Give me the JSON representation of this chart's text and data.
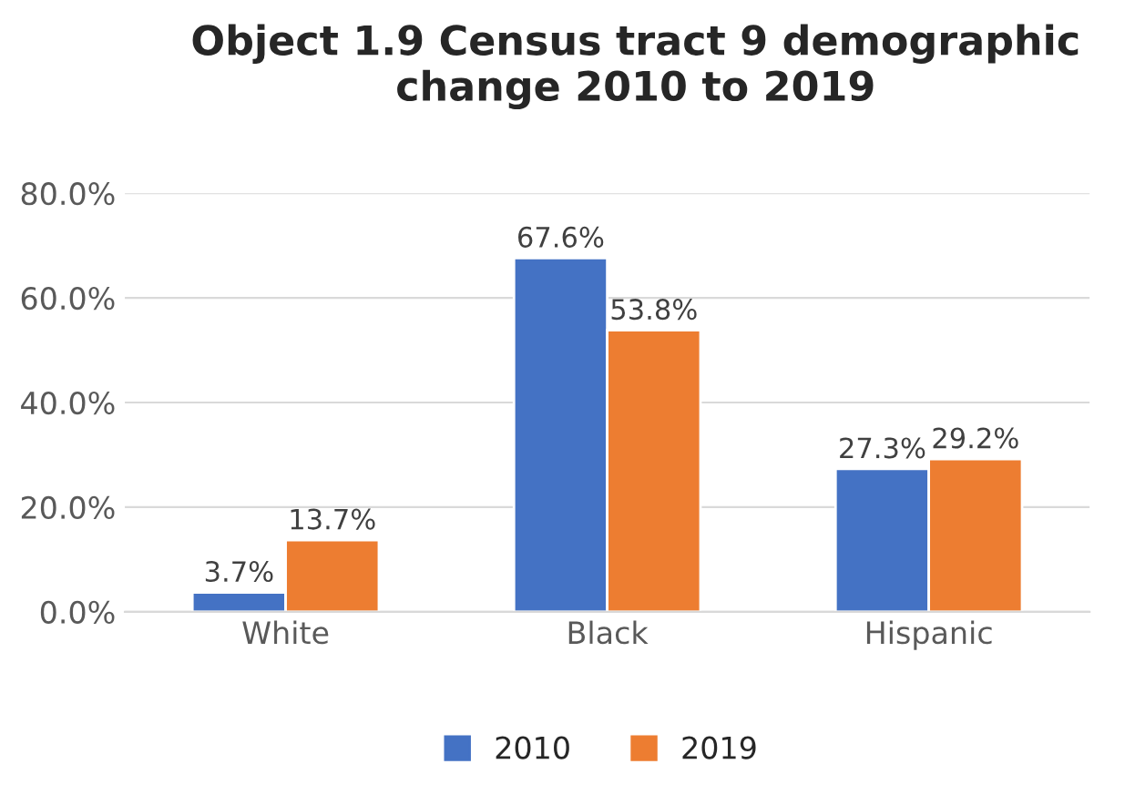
{
  "chart_data": {
    "type": "bar",
    "title": "Object 1.9 Census tract 9 demographic change 2010 to 2019",
    "categories": [
      "White",
      "Black",
      "Hispanic"
    ],
    "series": [
      {
        "name": "2010",
        "color": "#4472c4",
        "values": [
          3.7,
          67.6,
          27.3
        ],
        "value_labels": [
          "3.7%",
          "67.6%",
          "27.3%"
        ]
      },
      {
        "name": "2019",
        "color": "#ed7d31",
        "values": [
          13.7,
          53.8,
          29.2
        ],
        "value_labels": [
          "13.7%",
          "53.8%",
          "29.2%"
        ]
      }
    ],
    "ylim": [
      0,
      80
    ],
    "yticks": [
      {
        "value": 0,
        "label": "0.0%"
      },
      {
        "value": 20,
        "label": "20.0%"
      },
      {
        "value": 40,
        "label": "40.0%"
      },
      {
        "value": 60,
        "label": "60.0%"
      },
      {
        "value": 80,
        "label": "80.0%"
      }
    ],
    "grid": "y",
    "legend": "bottom"
  }
}
